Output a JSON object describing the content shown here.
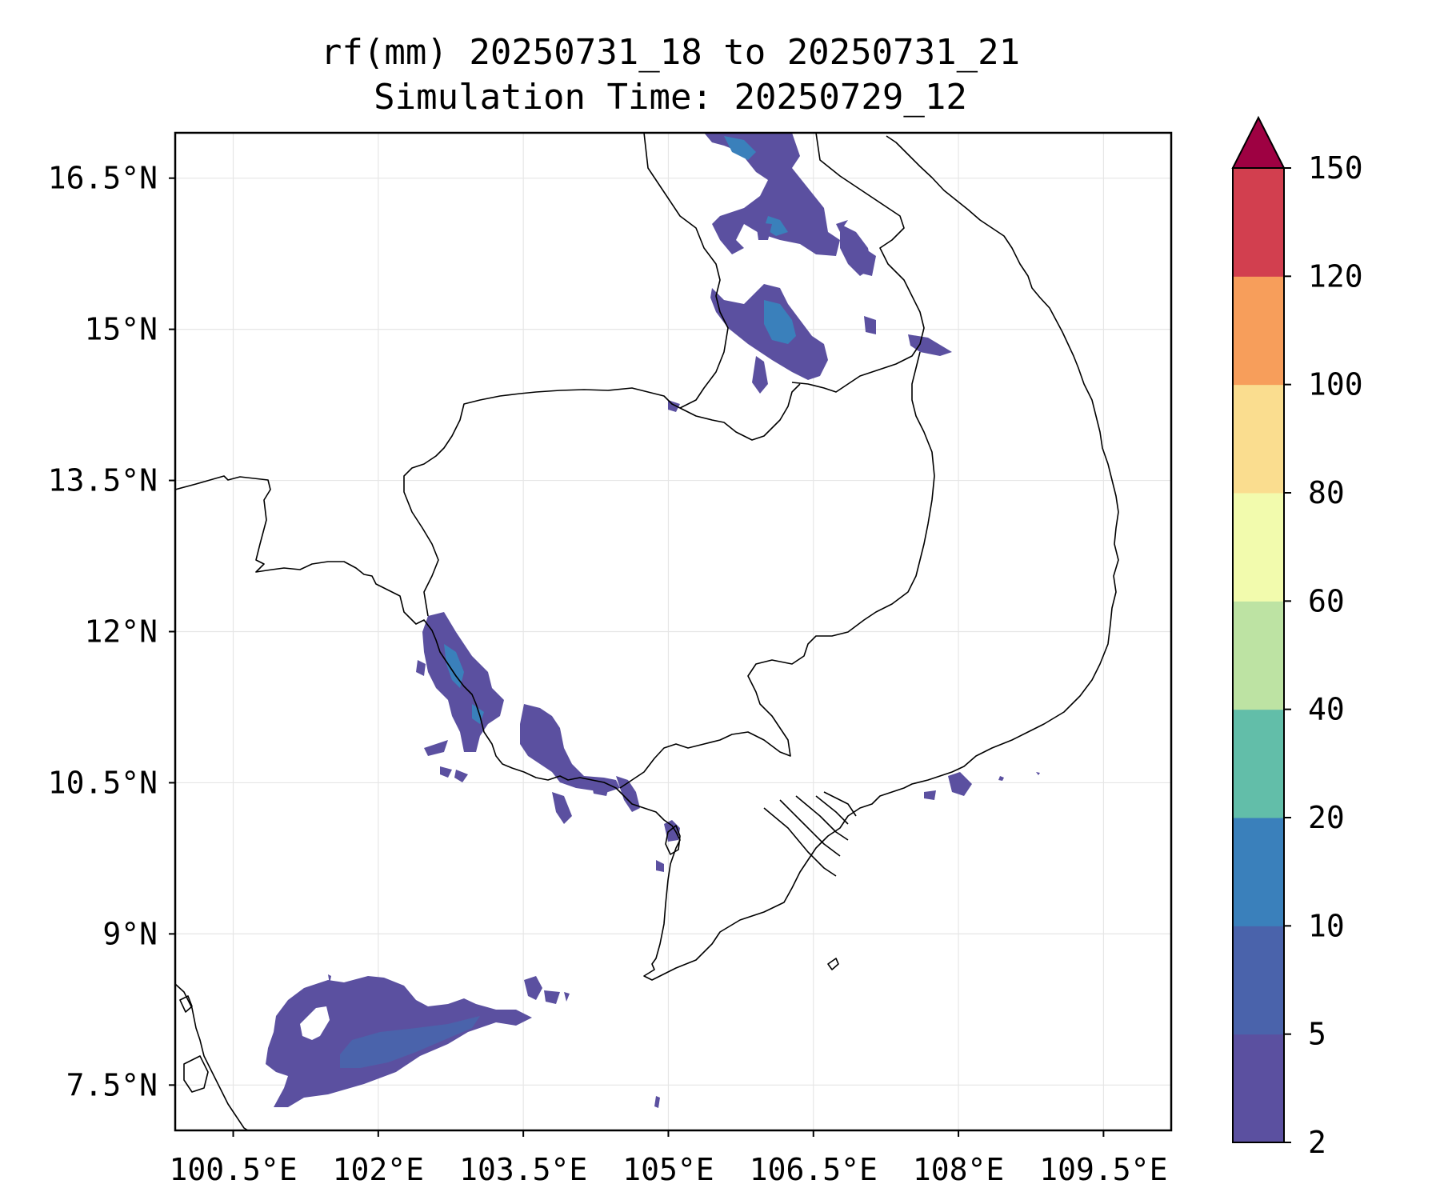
{
  "title": {
    "line1": "rf(mm) 20250731_18 to 20250731_21",
    "line2": "Simulation Time: 20250729_12"
  },
  "map": {
    "lon_range": [
      99.9,
      110.2
    ],
    "lat_range": [
      7.05,
      16.95
    ],
    "lon_ticks": [
      100.5,
      102,
      103.5,
      105,
      106.5,
      108,
      109.5
    ],
    "lon_tick_labels": [
      "100.5°E",
      "102°E",
      "103.5°E",
      "105°E",
      "106.5°E",
      "108°E",
      "109.5°E"
    ],
    "lat_ticks": [
      7.5,
      9,
      10.5,
      12,
      13.5,
      15,
      16.5
    ],
    "lat_tick_labels": [
      "7.5°N",
      "9°N",
      "10.5°N",
      "12°N",
      "13.5°N",
      "15°N",
      "16.5°N"
    ],
    "gridlines": true,
    "features": [
      "coastlines",
      "country-borders"
    ]
  },
  "colorbar": {
    "levels": [
      2,
      5,
      10,
      20,
      40,
      60,
      80,
      100,
      120,
      150
    ],
    "tick_labels": [
      "2",
      "5",
      "10",
      "20",
      "40",
      "60",
      "80",
      "100",
      "120",
      "150"
    ],
    "colors": [
      "#5b50a0",
      "#4a63ab",
      "#3a80bb",
      "#62bea9",
      "#bde3a3",
      "#f2fbad",
      "#fadd8f",
      "#f79e5b",
      "#d23f4f"
    ],
    "extend": "max",
    "extend_color": "#9e0142"
  },
  "chart_data": {
    "type": "heatmap",
    "variable": "rf(mm)",
    "valid_period": "20250731_18 to 20250731_21",
    "simulation_time": "20250729_12",
    "regions": [
      {
        "area": "northern Laos / central Vietnam border",
        "lon": [
          105.3,
          106.5
        ],
        "lat": [
          15.9,
          16.9
        ],
        "max_class": "10-20"
      },
      {
        "area": "southern Laos (near 15.4N 106E)",
        "lon": [
          105.4,
          106.3
        ],
        "lat": [
          14.5,
          15.5
        ],
        "max_class": "10-20"
      },
      {
        "area": "Laos-Vietnam border (15N 107E)",
        "lon": [
          106.8,
          107.3
        ],
        "lat": [
          14.8,
          15.1
        ],
        "max_class": "5-10"
      },
      {
        "area": "Thailand-Cambodia coast (Koh Kong)",
        "lon": [
          102.4,
          103.3
        ],
        "lat": [
          11.1,
          12.4
        ],
        "max_class": "10-20"
      },
      {
        "area": "Cambodian coast (Kampot / Kep)",
        "lon": [
          103.3,
          104.8
        ],
        "lat": [
          10.2,
          11.2
        ],
        "max_class": "10-20"
      },
      {
        "area": "Phu Quoc / Rach Gia",
        "lon": [
          104.3,
          105.1
        ],
        "lat": [
          9.6,
          10.2
        ],
        "max_class": "5-10"
      },
      {
        "area": "southern Vietnam coast offshore",
        "lon": [
          107.8,
          108.6
        ],
        "lat": [
          10.4,
          10.7
        ],
        "max_class": "5-10"
      },
      {
        "area": "Gulf of Thailand (south)",
        "lon": [
          100.8,
          104.2
        ],
        "lat": [
          7.3,
          8.6
        ],
        "max_class": "5-10"
      }
    ]
  }
}
